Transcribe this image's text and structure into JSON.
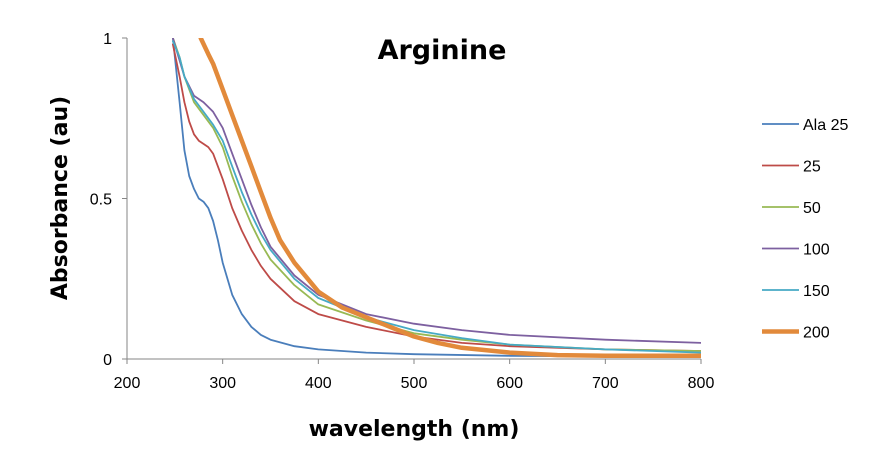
{
  "chart_data": {
    "type": "line",
    "title": "Arginine",
    "xlabel": "wavelength (nm)",
    "ylabel": "Absorbance (au)",
    "xlim": [
      200,
      800
    ],
    "ylim": [
      0,
      1
    ],
    "x_ticks": [
      "200",
      "300",
      "400",
      "500",
      "600",
      "700",
      "800"
    ],
    "y_ticks": [
      "0",
      "0.5",
      "1"
    ],
    "grid": false,
    "legend_position": "right",
    "series": [
      {
        "name": "Ala 25",
        "color": "#4a7ebb",
        "thick": false,
        "points": [
          [
            248,
            1.0
          ],
          [
            255,
            0.8
          ],
          [
            260,
            0.65
          ],
          [
            265,
            0.57
          ],
          [
            270,
            0.53
          ],
          [
            275,
            0.5
          ],
          [
            280,
            0.49
          ],
          [
            285,
            0.47
          ],
          [
            290,
            0.43
          ],
          [
            295,
            0.37
          ],
          [
            300,
            0.3
          ],
          [
            310,
            0.2
          ],
          [
            320,
            0.14
          ],
          [
            330,
            0.1
          ],
          [
            340,
            0.075
          ],
          [
            350,
            0.06
          ],
          [
            375,
            0.04
          ],
          [
            400,
            0.03
          ],
          [
            450,
            0.02
          ],
          [
            500,
            0.015
          ],
          [
            600,
            0.01
          ],
          [
            700,
            0.008
          ],
          [
            800,
            0.007
          ]
        ]
      },
      {
        "name": "25",
        "color": "#be4b48",
        "thick": false,
        "points": [
          [
            248,
            0.98
          ],
          [
            255,
            0.88
          ],
          [
            260,
            0.8
          ],
          [
            265,
            0.74
          ],
          [
            270,
            0.7
          ],
          [
            275,
            0.68
          ],
          [
            280,
            0.67
          ],
          [
            285,
            0.66
          ],
          [
            290,
            0.64
          ],
          [
            300,
            0.56
          ],
          [
            310,
            0.47
          ],
          [
            320,
            0.4
          ],
          [
            330,
            0.34
          ],
          [
            340,
            0.29
          ],
          [
            350,
            0.25
          ],
          [
            375,
            0.18
          ],
          [
            400,
            0.14
          ],
          [
            450,
            0.1
          ],
          [
            500,
            0.07
          ],
          [
            550,
            0.05
          ],
          [
            600,
            0.04
          ],
          [
            700,
            0.03
          ],
          [
            800,
            0.025
          ]
        ]
      },
      {
        "name": "50",
        "color": "#98b954",
        "thick": false,
        "points": [
          [
            248,
            1.0
          ],
          [
            255,
            0.94
          ],
          [
            260,
            0.88
          ],
          [
            270,
            0.8
          ],
          [
            280,
            0.76
          ],
          [
            290,
            0.72
          ],
          [
            300,
            0.66
          ],
          [
            310,
            0.57
          ],
          [
            320,
            0.49
          ],
          [
            330,
            0.42
          ],
          [
            340,
            0.36
          ],
          [
            350,
            0.31
          ],
          [
            375,
            0.23
          ],
          [
            400,
            0.17
          ],
          [
            450,
            0.12
          ],
          [
            500,
            0.08
          ],
          [
            550,
            0.06
          ],
          [
            600,
            0.045
          ],
          [
            700,
            0.03
          ],
          [
            800,
            0.025
          ]
        ]
      },
      {
        "name": "100",
        "color": "#7d60a0",
        "thick": false,
        "points": [
          [
            248,
            1.0
          ],
          [
            255,
            0.93
          ],
          [
            260,
            0.88
          ],
          [
            270,
            0.82
          ],
          [
            280,
            0.8
          ],
          [
            290,
            0.77
          ],
          [
            300,
            0.72
          ],
          [
            310,
            0.64
          ],
          [
            320,
            0.56
          ],
          [
            330,
            0.48
          ],
          [
            340,
            0.41
          ],
          [
            350,
            0.35
          ],
          [
            375,
            0.26
          ],
          [
            400,
            0.2
          ],
          [
            450,
            0.14
          ],
          [
            500,
            0.11
          ],
          [
            550,
            0.09
          ],
          [
            600,
            0.075
          ],
          [
            700,
            0.06
          ],
          [
            800,
            0.05
          ]
        ]
      },
      {
        "name": "150",
        "color": "#46aac5",
        "thick": false,
        "points": [
          [
            248,
            0.99
          ],
          [
            255,
            0.94
          ],
          [
            260,
            0.88
          ],
          [
            270,
            0.81
          ],
          [
            280,
            0.77
          ],
          [
            290,
            0.73
          ],
          [
            300,
            0.68
          ],
          [
            310,
            0.6
          ],
          [
            320,
            0.52
          ],
          [
            330,
            0.45
          ],
          [
            340,
            0.39
          ],
          [
            350,
            0.34
          ],
          [
            375,
            0.25
          ],
          [
            400,
            0.19
          ],
          [
            450,
            0.13
          ],
          [
            500,
            0.09
          ],
          [
            550,
            0.065
          ],
          [
            600,
            0.045
          ],
          [
            700,
            0.03
          ],
          [
            800,
            0.02
          ]
        ]
      },
      {
        "name": "200",
        "color": "#e28a3b",
        "thick": true,
        "points": [
          [
            277,
            1.0
          ],
          [
            285,
            0.95
          ],
          [
            290,
            0.92
          ],
          [
            300,
            0.84
          ],
          [
            310,
            0.76
          ],
          [
            320,
            0.68
          ],
          [
            330,
            0.6
          ],
          [
            340,
            0.52
          ],
          [
            350,
            0.44
          ],
          [
            360,
            0.37
          ],
          [
            375,
            0.3
          ],
          [
            400,
            0.21
          ],
          [
            425,
            0.16
          ],
          [
            450,
            0.13
          ],
          [
            475,
            0.1
          ],
          [
            500,
            0.07
          ],
          [
            525,
            0.05
          ],
          [
            550,
            0.035
          ],
          [
            600,
            0.02
          ],
          [
            650,
            0.012
          ],
          [
            700,
            0.01
          ],
          [
            800,
            0.01
          ]
        ]
      }
    ]
  }
}
